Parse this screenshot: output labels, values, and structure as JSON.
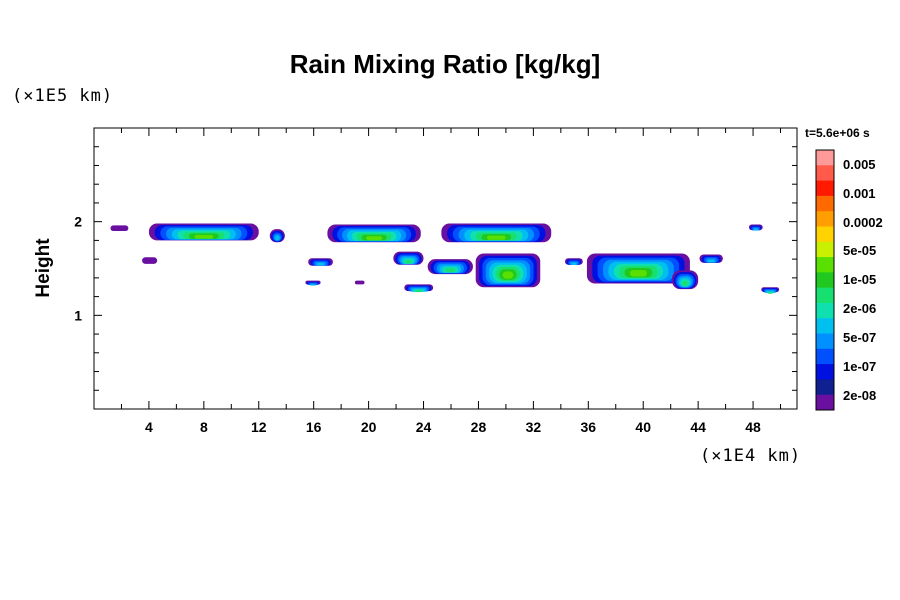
{
  "chart_data": {
    "type": "heatmap",
    "title": "Rain Mixing Ratio [kg/kg]",
    "ylabel": "Height",
    "xlabel": "",
    "x_unit": "(×1E4 km)",
    "y_unit": "(×1E5 km)",
    "time_label": "t=5.6e+06 s",
    "xlim": [
      0,
      51.2
    ],
    "ylim": [
      0,
      3
    ],
    "x_ticks": [
      4,
      8,
      12,
      16,
      20,
      24,
      28,
      32,
      36,
      40,
      44,
      48
    ],
    "x_tick_labels": [
      "4",
      "8",
      "12",
      "16",
      "20",
      "24",
      "28",
      "32",
      "36",
      "40",
      "44",
      "48"
    ],
    "y_ticks": [
      1,
      2
    ],
    "y_tick_labels": [
      "1",
      "2"
    ],
    "colorbar": {
      "labels": [
        "0.005",
        "0.001",
        "0.0002",
        "5e-05",
        "1e-05",
        "2e-06",
        "5e-07",
        "1e-07",
        "2e-08"
      ],
      "colors": [
        "#ff9a9a",
        "#ff5a4a",
        "#ff1a00",
        "#ff6a00",
        "#ff9e00",
        "#ffd200",
        "#c8f000",
        "#5ae000",
        "#20c820",
        "#18e070",
        "#10e0b0",
        "#00c0f0",
        "#0090ff",
        "#0050ff",
        "#0010e0",
        "#102090",
        "#6a10a0"
      ]
    },
    "cloud_bands": [
      {
        "x": [
          1.2,
          2.5
        ],
        "y": [
          1.9,
          1.96
        ],
        "peak": "2e-08"
      },
      {
        "x": [
          4,
          12
        ],
        "y": [
          1.8,
          1.98
        ],
        "peak": "1e-05"
      },
      {
        "x": [
          12.8,
          13.9
        ],
        "y": [
          1.78,
          1.92
        ],
        "peak": "5e-07"
      },
      {
        "x": [
          17,
          23.8
        ],
        "y": [
          1.78,
          1.97
        ],
        "peak": "1e-05"
      },
      {
        "x": [
          25.3,
          33.3
        ],
        "y": [
          1.78,
          1.98
        ],
        "peak": "1e-05"
      },
      {
        "x": [
          3.5,
          4.6
        ],
        "y": [
          1.55,
          1.62
        ],
        "peak": "2e-08"
      },
      {
        "x": [
          15.6,
          17.4
        ],
        "y": [
          1.53,
          1.61
        ],
        "peak": "5e-07"
      },
      {
        "x": [
          21.8,
          24
        ],
        "y": [
          1.54,
          1.68
        ],
        "peak": "2e-06"
      },
      {
        "x": [
          24.3,
          27.6
        ],
        "y": [
          1.44,
          1.6
        ],
        "peak": "2e-06"
      },
      {
        "x": [
          27.8,
          32.5
        ],
        "y": [
          1.3,
          1.66
        ],
        "peak": "1e-05"
      },
      {
        "x": [
          34.3,
          35.6
        ],
        "y": [
          1.54,
          1.61
        ],
        "peak": "5e-07"
      },
      {
        "x": [
          35.9,
          43.4
        ],
        "y": [
          1.34,
          1.66
        ],
        "peak": "1e-05"
      },
      {
        "x": [
          42.1,
          44
        ],
        "y": [
          1.28,
          1.48
        ],
        "peak": "2e-06"
      },
      {
        "x": [
          44.1,
          45.8
        ],
        "y": [
          1.56,
          1.65
        ],
        "peak": "5e-07"
      },
      {
        "x": [
          15.4,
          16.5
        ],
        "y": [
          1.33,
          1.37
        ],
        "peak": "5e-07"
      },
      {
        "x": [
          19,
          19.7
        ],
        "y": [
          1.33,
          1.37
        ],
        "peak": "2e-08"
      },
      {
        "x": [
          22.6,
          24.7
        ],
        "y": [
          1.26,
          1.33
        ],
        "peak": "2e-06"
      },
      {
        "x": [
          47.7,
          48.7
        ],
        "y": [
          1.91,
          1.97
        ],
        "peak": "5e-07"
      },
      {
        "x": [
          48.6,
          49.9
        ],
        "y": [
          1.25,
          1.3
        ],
        "peak": "2e-06"
      }
    ]
  }
}
